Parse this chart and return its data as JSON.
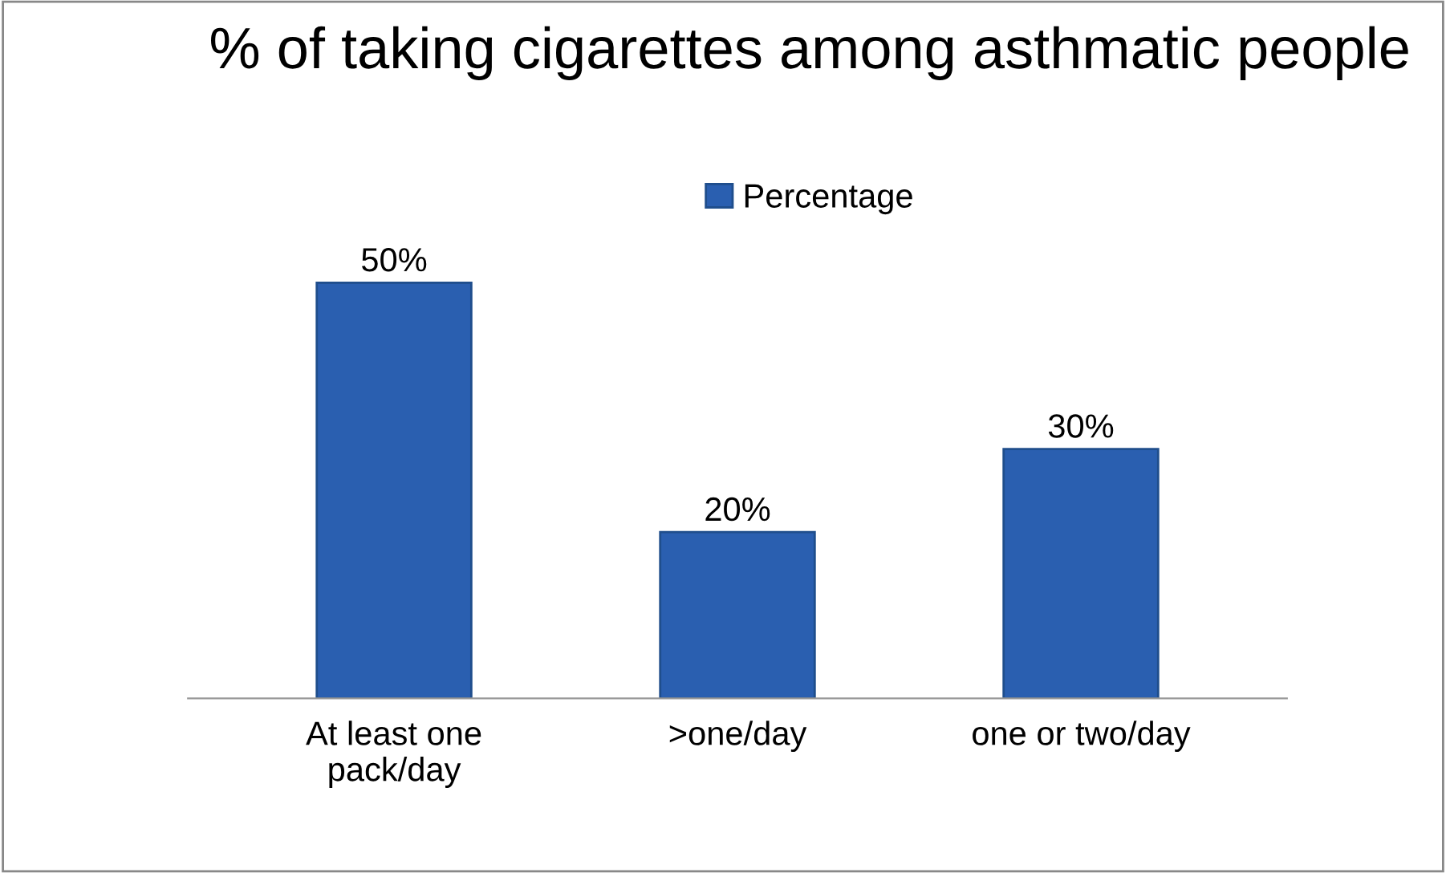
{
  "chart_data": {
    "type": "bar",
    "title": "% of taking cigarettes among asthmatic people",
    "categories": [
      "At least one\npack/day",
      ">one/day",
      "one or two/day"
    ],
    "series": [
      {
        "name": "Percentage",
        "color": "#2a5fb0",
        "values": [
          50,
          20,
          30
        ],
        "value_labels": [
          "50%",
          "20%",
          "30%"
        ]
      }
    ],
    "legend": "top",
    "grid": false
  }
}
